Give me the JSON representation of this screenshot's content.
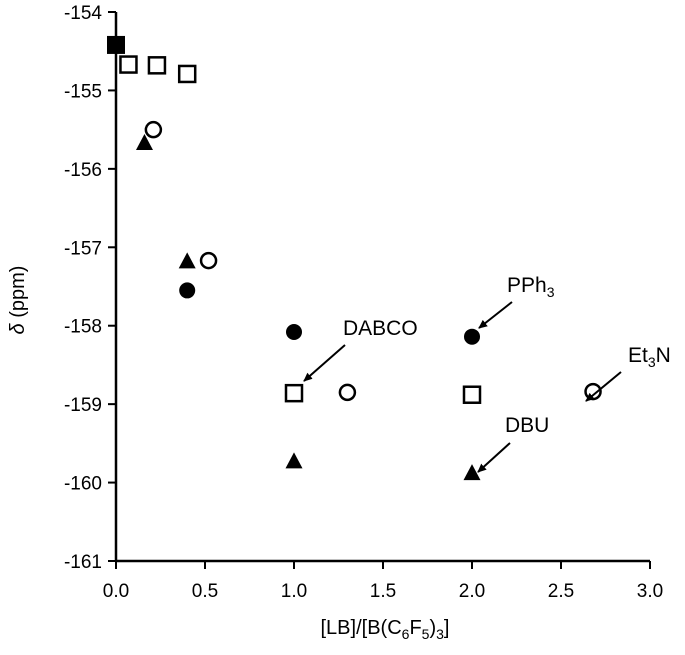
{
  "chart_data": {
    "type": "scatter",
    "title": "",
    "xlabel": {
      "pre": "[LB]/[B(C",
      "s1": "6",
      "mid": "F",
      "s2": "5",
      "post": ")",
      "s3": "3",
      "tail": "]"
    },
    "ylabel": {
      "italic": "δ",
      "rest": " (ppm)"
    },
    "xlim": [
      0,
      3.0
    ],
    "ylim": [
      -161,
      -154
    ],
    "xticks": [
      "0.0",
      "0.5",
      "1.0",
      "1.5",
      "2.0",
      "2.5",
      "3.0"
    ],
    "yticks": [
      "-154",
      "-155",
      "-156",
      "-157",
      "-158",
      "-159",
      "-160",
      "-161"
    ],
    "grid": false,
    "legend": "none",
    "series": [
      {
        "marker": "filled-square",
        "x": [
          0.0
        ],
        "y": [
          -154.42
        ]
      },
      {
        "marker": "open-square",
        "x": [
          0.07,
          0.23,
          0.4,
          1.0,
          2.0
        ],
        "y": [
          -154.67,
          -154.68,
          -154.79,
          -158.86,
          -158.88
        ]
      },
      {
        "marker": "filled-circle",
        "x": [
          0.4,
          1.0,
          2.0
        ],
        "y": [
          -157.55,
          -158.08,
          -158.14
        ]
      },
      {
        "marker": "open-circle",
        "x": [
          0.21,
          0.52,
          1.3,
          2.68
        ],
        "y": [
          -155.5,
          -157.17,
          -158.85,
          -158.84
        ]
      },
      {
        "marker": "filled-triangle",
        "x": [
          0.16,
          0.4,
          1.0,
          2.0
        ],
        "y": [
          -155.67,
          -157.18,
          -159.73,
          -159.88
        ]
      }
    ],
    "annotations": [
      {
        "name": "pph3",
        "text": "PPh",
        "sub": "3",
        "after": "",
        "point": [
          2.0,
          -158.14
        ]
      },
      {
        "name": "dabco",
        "text": "DABCO",
        "sub": "",
        "after": "",
        "point": [
          1.0,
          -158.86
        ]
      },
      {
        "name": "et3n",
        "text": "Et",
        "sub": "3",
        "after": "N",
        "point": [
          2.68,
          -158.84
        ]
      },
      {
        "name": "dbu",
        "text": "DBU",
        "sub": "",
        "after": "",
        "point": [
          2.0,
          -159.88
        ]
      }
    ]
  }
}
